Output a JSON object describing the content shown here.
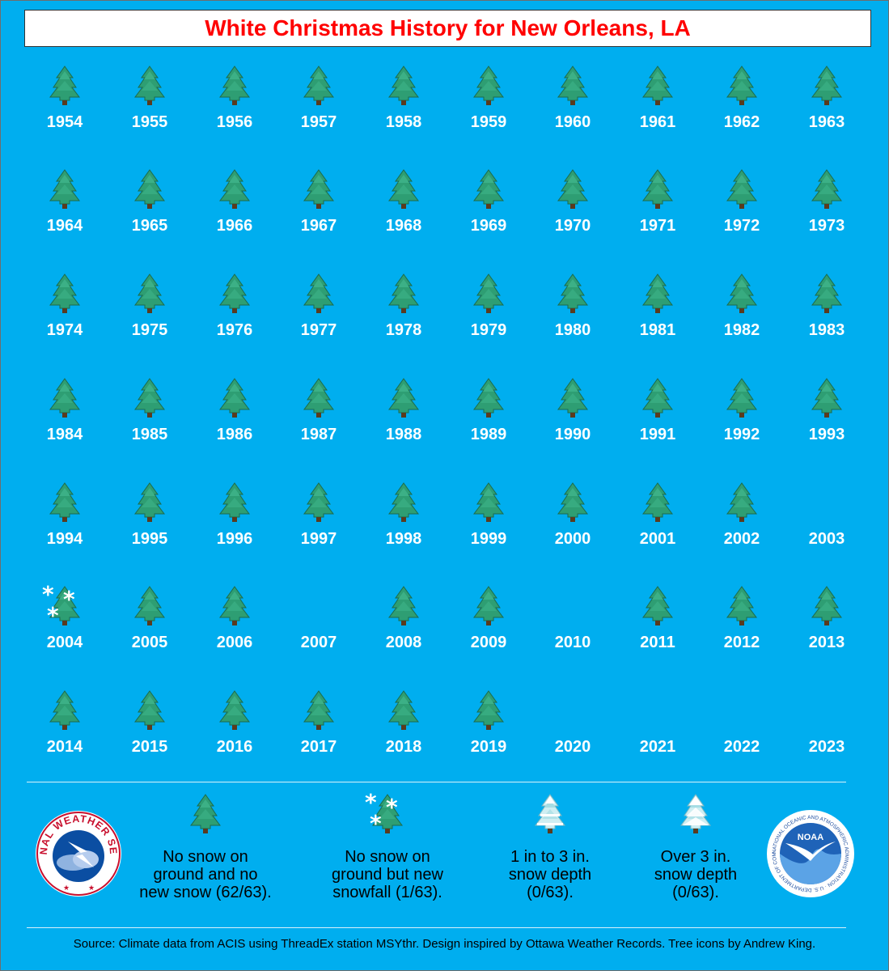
{
  "title": "White Christmas History for New Orleans, LA",
  "years": [
    {
      "year": "1954",
      "icon": "green-tree"
    },
    {
      "year": "1955",
      "icon": "green-tree"
    },
    {
      "year": "1956",
      "icon": "green-tree"
    },
    {
      "year": "1957",
      "icon": "green-tree"
    },
    {
      "year": "1958",
      "icon": "green-tree"
    },
    {
      "year": "1959",
      "icon": "green-tree"
    },
    {
      "year": "1960",
      "icon": "green-tree"
    },
    {
      "year": "1961",
      "icon": "green-tree"
    },
    {
      "year": "1962",
      "icon": "green-tree"
    },
    {
      "year": "1963",
      "icon": "green-tree"
    },
    {
      "year": "1964",
      "icon": "green-tree"
    },
    {
      "year": "1965",
      "icon": "green-tree"
    },
    {
      "year": "1966",
      "icon": "green-tree"
    },
    {
      "year": "1967",
      "icon": "green-tree"
    },
    {
      "year": "1968",
      "icon": "green-tree"
    },
    {
      "year": "1969",
      "icon": "green-tree"
    },
    {
      "year": "1970",
      "icon": "green-tree"
    },
    {
      "year": "1971",
      "icon": "green-tree"
    },
    {
      "year": "1972",
      "icon": "green-tree"
    },
    {
      "year": "1973",
      "icon": "green-tree"
    },
    {
      "year": "1974",
      "icon": "green-tree"
    },
    {
      "year": "1975",
      "icon": "green-tree"
    },
    {
      "year": "1976",
      "icon": "green-tree"
    },
    {
      "year": "1977",
      "icon": "green-tree"
    },
    {
      "year": "1978",
      "icon": "green-tree"
    },
    {
      "year": "1979",
      "icon": "green-tree"
    },
    {
      "year": "1980",
      "icon": "green-tree"
    },
    {
      "year": "1981",
      "icon": "green-tree"
    },
    {
      "year": "1982",
      "icon": "green-tree"
    },
    {
      "year": "1983",
      "icon": "green-tree"
    },
    {
      "year": "1984",
      "icon": "green-tree"
    },
    {
      "year": "1985",
      "icon": "green-tree"
    },
    {
      "year": "1986",
      "icon": "green-tree"
    },
    {
      "year": "1987",
      "icon": "green-tree"
    },
    {
      "year": "1988",
      "icon": "green-tree"
    },
    {
      "year": "1989",
      "icon": "green-tree"
    },
    {
      "year": "1990",
      "icon": "green-tree"
    },
    {
      "year": "1991",
      "icon": "green-tree"
    },
    {
      "year": "1992",
      "icon": "green-tree"
    },
    {
      "year": "1993",
      "icon": "green-tree"
    },
    {
      "year": "1994",
      "icon": "green-tree"
    },
    {
      "year": "1995",
      "icon": "green-tree"
    },
    {
      "year": "1996",
      "icon": "green-tree"
    },
    {
      "year": "1997",
      "icon": "green-tree"
    },
    {
      "year": "1998",
      "icon": "green-tree"
    },
    {
      "year": "1999",
      "icon": "green-tree"
    },
    {
      "year": "2000",
      "icon": "green-tree"
    },
    {
      "year": "2001",
      "icon": "green-tree"
    },
    {
      "year": "2002",
      "icon": "green-tree"
    },
    {
      "year": "2003",
      "icon": "none"
    },
    {
      "year": "2004",
      "icon": "snowfall-tree"
    },
    {
      "year": "2005",
      "icon": "green-tree"
    },
    {
      "year": "2006",
      "icon": "green-tree"
    },
    {
      "year": "2007",
      "icon": "none"
    },
    {
      "year": "2008",
      "icon": "green-tree"
    },
    {
      "year": "2009",
      "icon": "green-tree"
    },
    {
      "year": "2010",
      "icon": "none"
    },
    {
      "year": "2011",
      "icon": "green-tree"
    },
    {
      "year": "2012",
      "icon": "green-tree"
    },
    {
      "year": "2013",
      "icon": "green-tree"
    },
    {
      "year": "2014",
      "icon": "green-tree"
    },
    {
      "year": "2015",
      "icon": "green-tree"
    },
    {
      "year": "2016",
      "icon": "green-tree"
    },
    {
      "year": "2017",
      "icon": "green-tree"
    },
    {
      "year": "2018",
      "icon": "green-tree"
    },
    {
      "year": "2019",
      "icon": "green-tree"
    },
    {
      "year": "2020",
      "icon": "none"
    },
    {
      "year": "2021",
      "icon": "none"
    },
    {
      "year": "2022",
      "icon": "none"
    },
    {
      "year": "2023",
      "icon": "none"
    }
  ],
  "legend": [
    {
      "icon": "green-tree",
      "text": "No snow on\nground and no\nnew snow (62/63)."
    },
    {
      "icon": "snowfall-tree",
      "text": "No snow on\nground but new\nsnowfall (1/63)."
    },
    {
      "icon": "light-snow-tree",
      "text": "1 in to 3 in.\nsnow depth\n(0/63)."
    },
    {
      "icon": "heavy-snow-tree",
      "text": "Over 3 in.\nsnow depth\n(0/63)."
    }
  ],
  "logos": {
    "nws": "NATIONAL WEATHER SERVICE",
    "noaa": "NOAA",
    "noaa_ring": "NATIONAL OCEANIC AND ATMOSPHERIC ADMINISTRATION · U.S. DEPARTMENT OF COMMERCE"
  },
  "source": "Source: Climate data from ACIS using ThreadEx station MSYthr. Design inspired by Ottawa Weather Records. Tree icons by Andrew King.",
  "colors": {
    "background": "#00aeef",
    "title": "#ff0000",
    "tree": "#2e9e73",
    "tree_dark": "#1c6b4c",
    "year_text": "#ffffff"
  }
}
